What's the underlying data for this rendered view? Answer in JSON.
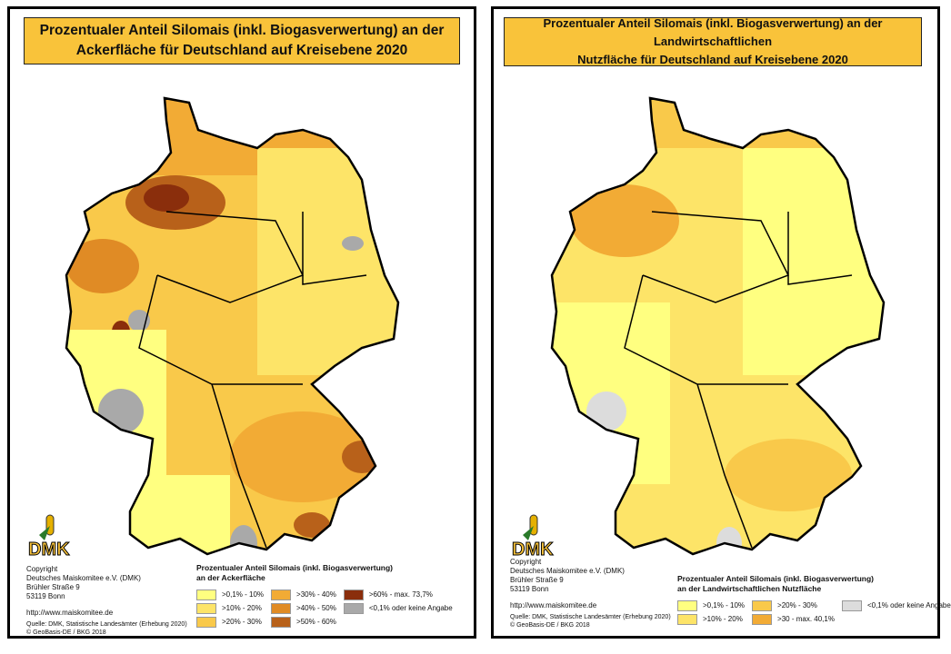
{
  "left": {
    "title_line1": "Prozentualer Anteil Silomais (inkl. Biogasverwertung) an der",
    "title_line2": "Ackerfläche für Deutschland auf Kreisebene 2020",
    "legend_title_line1": "Prozentualer Anteil Silomais (inkl. Biogasverwertung)",
    "legend_title_line2": "an der Ackerfläche",
    "legend": [
      {
        "label": ">0,1% - 10%",
        "color": "#ffff80"
      },
      {
        "label": ">10% - 20%",
        "color": "#fde468"
      },
      {
        "label": ">20% - 30%",
        "color": "#f9c94a"
      },
      {
        "label": ">30% - 40%",
        "color": "#f2ab35"
      },
      {
        "label": ">40% - 50%",
        "color": "#e08b25"
      },
      {
        "label": ">50% - 60%",
        "color": "#b8611a"
      },
      {
        "label": ">60% - max. 73,7%",
        "color": "#8a2e0c"
      },
      {
        "label": "<0,1% oder keine Angabe",
        "color": "#a9a9a9"
      }
    ]
  },
  "right": {
    "title_line1": "Prozentualer Anteil Silomais (inkl. Biogasverwertung) an der Landwirtschaftlichen",
    "title_line2": "Nutzfläche für Deutschland auf Kreisebene 2020",
    "legend_title_line1": "Prozentualer Anteil Silomais (inkl. Biogasverwertung)",
    "legend_title_line2": "an der Landwirtschaftlichen Nutzfläche",
    "legend": [
      {
        "label": ">0,1% - 10%",
        "color": "#ffff80"
      },
      {
        "label": ">10% - 20%",
        "color": "#fde468"
      },
      {
        "label": ">20% - 30%",
        "color": "#f9c94a"
      },
      {
        "label": ">30 - max. 40,1%",
        "color": "#f2ab35"
      },
      {
        "label": "<0,1% oder keine Angabe",
        "color": "#dcdcdc"
      }
    ]
  },
  "logo": "DMK",
  "copyright": {
    "line1": "Copyright",
    "line2": "Deutsches Maiskomitee e.V. (DMK)",
    "line3": "Brühler Straße 9",
    "line4": "53119 Bonn",
    "url": "http://www.maiskomitee.de",
    "source1": "Quelle: DMK, Statistische Landesämter (Erhebung 2020)",
    "source2": "© GeoBasis-DE / BKG 2018"
  }
}
